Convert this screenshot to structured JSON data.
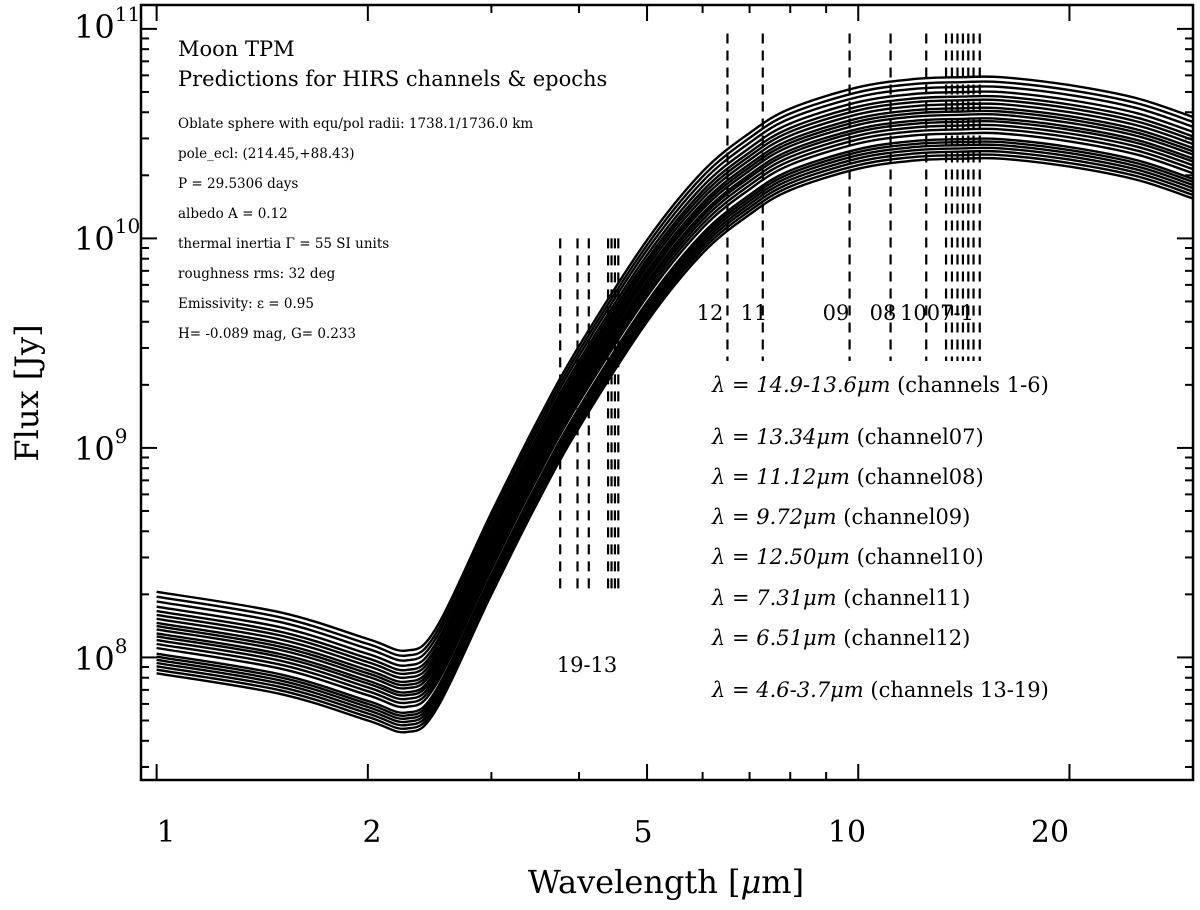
{
  "chart_data": {
    "type": "line",
    "xscale": "log",
    "yscale": "log",
    "xlim": [
      0.95,
      30
    ],
    "ylim": [
      26000000,
      130000000000
    ],
    "xlabel_pre": "Wavelength [",
    "xlabel_mu": "μ",
    "xlabel_post": "m]",
    "ylabel": "Flux [Jy]",
    "xticks": [
      {
        "value": 1,
        "label": "1"
      },
      {
        "value": 2,
        "label": "2"
      },
      {
        "value": 5,
        "label": "5"
      },
      {
        "value": 10,
        "label": "10"
      },
      {
        "value": 20,
        "label": "20"
      }
    ],
    "yticks": [
      {
        "exp": 8,
        "base": "10",
        "sup": "8"
      },
      {
        "exp": 9,
        "base": "10",
        "sup": "9"
      },
      {
        "exp": 10,
        "base": "10",
        "sup": "10"
      },
      {
        "exp": 11,
        "base": "10",
        "sup": "11"
      }
    ],
    "title": "Moon TPM",
    "subtitle": "Predictions for HIRS channels & epochs",
    "model_params": [
      "Oblate sphere with equ/pol radii: 1738.1/1736.0 km",
      "pole_ecl: (214.45,+88.43)",
      "P = 29.5306 days",
      "albedo A = 0.12",
      "thermal inertia Γ = 55 SI units",
      "roughness rms: 32 deg",
      "Emissivity: ε = 0.95",
      "H= -0.089 mag, G= 0.233"
    ],
    "series_scale_factors": [
      1.0,
      1.04,
      1.08,
      1.12,
      1.16,
      1.2,
      1.24,
      1.32,
      1.38,
      1.44,
      1.5,
      1.55,
      1.62,
      1.68,
      1.74,
      1.82,
      1.9,
      1.98,
      2.08,
      2.2,
      2.32,
      2.45
    ],
    "series_base_curve": {
      "x": [
        1.0,
        1.5,
        2.0,
        2.27,
        2.5,
        3.0,
        3.5,
        4.0,
        5.0,
        6.0,
        7.0,
        8.0,
        10.0,
        12.0,
        14.0,
        16.0,
        20.0,
        25.0,
        30.0
      ],
      "y": [
        84000000,
        67000000,
        50000000,
        44000000,
        56000000,
        200000000,
        560000000,
        1250000000,
        4000000000,
        8500000000,
        13000000000,
        17000000000,
        21500000000,
        23500000000,
        24000000000,
        24000000000,
        22000000000,
        19000000000,
        15500000000
      ]
    },
    "channel_markers_long": [
      {
        "value": 6.51,
        "label": "12"
      },
      {
        "value": 7.31,
        "label": "11"
      },
      {
        "value": 9.72,
        "label": "09"
      },
      {
        "value": 11.12,
        "label": "08"
      },
      {
        "value": 12.5,
        "label": ""
      },
      {
        "value": 13.34,
        "label": ""
      },
      {
        "value": 13.6,
        "label": ""
      },
      {
        "value": 13.85,
        "label": ""
      },
      {
        "value": 14.1,
        "label": ""
      },
      {
        "value": 14.35,
        "label": ""
      },
      {
        "value": 14.6,
        "label": ""
      },
      {
        "value": 14.9,
        "label": ""
      }
    ],
    "channel_group_label_long": "1007-1",
    "channel_markers_short": [
      3.76,
      3.98,
      4.13,
      4.4,
      4.45,
      4.5,
      4.55
    ],
    "channel_group_label_short": "19-13",
    "marker_y_range_long": [
      2600000000,
      95000000000
    ],
    "marker_y_range_short": [
      200000000,
      10000000000
    ],
    "legend": [
      {
        "pre": "λ = 14.9-13.6",
        "unit": "μm",
        "post": " (channels 1-6)"
      },
      {
        "pre": "λ = 13.34",
        "unit": "μm",
        "post": " (channel07)"
      },
      {
        "pre": "λ = 11.12",
        "unit": "μm",
        "post": " (channel08)"
      },
      {
        "pre": "λ =  9.72",
        "unit": "μm",
        "post": " (channel09)"
      },
      {
        "pre": "λ = 12.50",
        "unit": "μm",
        "post": " (channel10)"
      },
      {
        "pre": "λ =  7.31",
        "unit": "μm",
        "post": " (channel11)"
      },
      {
        "pre": "λ =  6.51",
        "unit": "μm",
        "post": " (channel12)"
      },
      {
        "pre": "λ = 4.6-3.7",
        "unit": "μm",
        "post": " (channels 13-19)"
      }
    ]
  }
}
